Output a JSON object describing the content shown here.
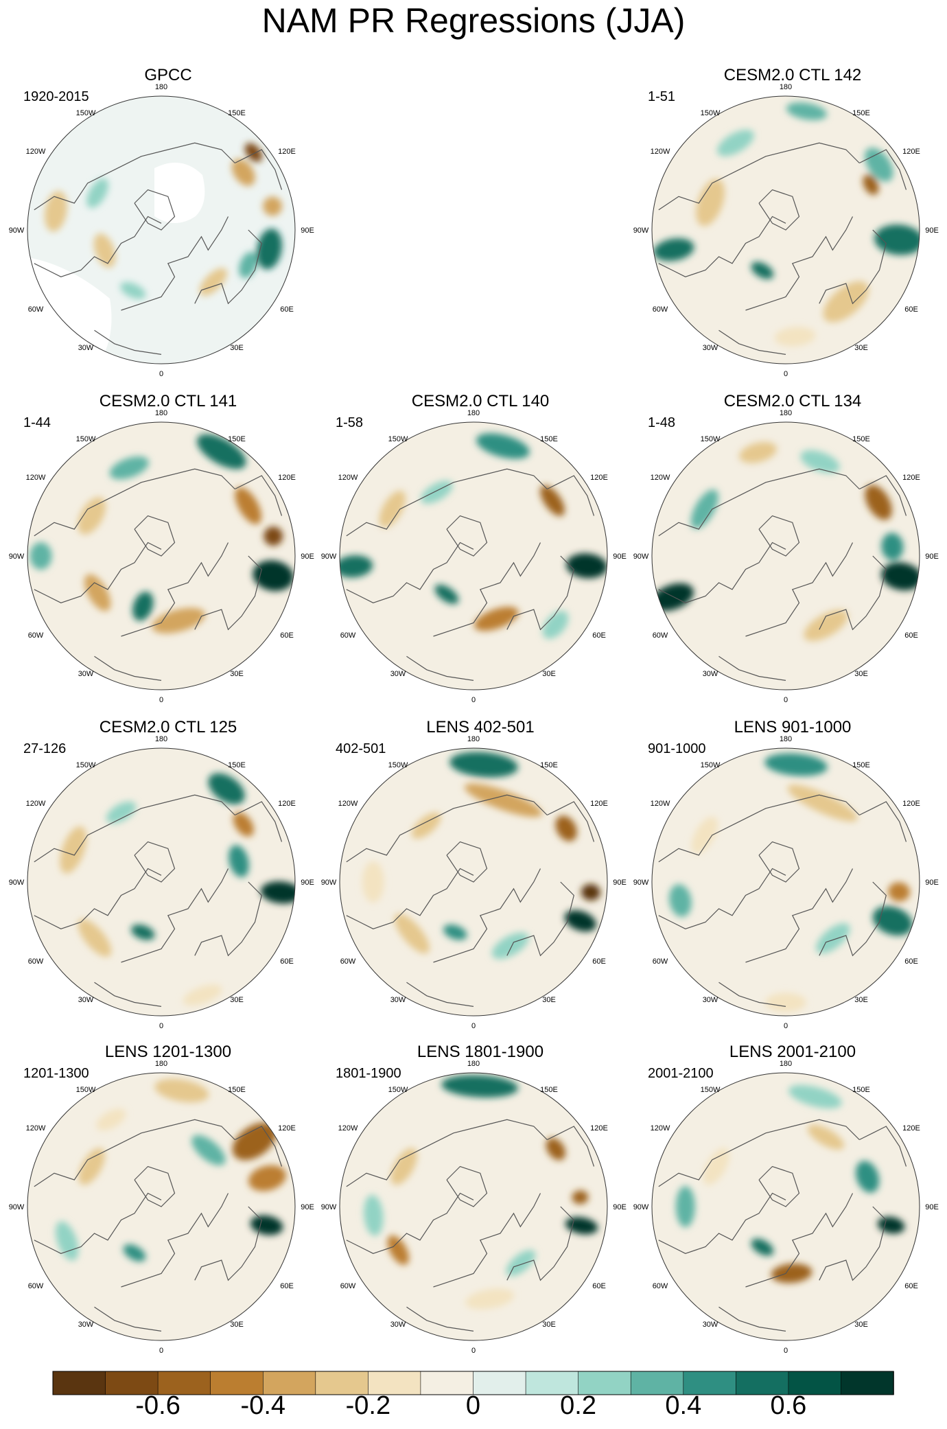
{
  "title": "NAM PR Regressions (JJA)",
  "colors": {
    "coast": "#555555",
    "palette": [
      "#5a3510",
      "#7d4a14",
      "#9c621e",
      "#bb7e30",
      "#d3a55e",
      "#e5c88e",
      "#f3e3c1",
      "#f4efe3",
      "#e2efeb",
      "#bfe6dd",
      "#92d3c4",
      "#5fb3a4",
      "#2f8f82",
      "#146f61",
      "#035445",
      "#01362b"
    ]
  },
  "lon_labels": [
    "180",
    "150E",
    "120E",
    "90E",
    "60E",
    "30E",
    "0",
    "30W",
    "60W",
    "90W",
    "120W",
    "150W"
  ],
  "panels": [
    {
      "title": "GPCC",
      "period": "1920-2015",
      "mask": true,
      "blobs": [
        {
          "a": 50,
          "r": 0.9,
          "rx": 16,
          "ry": 10,
          "v": -0.7
        },
        {
          "a": 55,
          "r": 0.75,
          "rx": 22,
          "ry": 14,
          "v": -0.4
        },
        {
          "a": 78,
          "r": 0.85,
          "rx": 14,
          "ry": 14,
          "v": -0.35
        },
        {
          "a": 100,
          "r": 0.82,
          "rx": 30,
          "ry": 18,
          "v": 0.55
        },
        {
          "a": 112,
          "r": 0.7,
          "rx": 20,
          "ry": 12,
          "v": 0.3
        },
        {
          "a": 135,
          "r": 0.55,
          "rx": 26,
          "ry": 12,
          "v": -0.25
        },
        {
          "a": 205,
          "r": 0.5,
          "rx": 20,
          "ry": 10,
          "v": 0.2
        },
        {
          "a": 250,
          "r": 0.45,
          "rx": 26,
          "ry": 14,
          "v": -0.3
        },
        {
          "a": 280,
          "r": 0.8,
          "rx": 30,
          "ry": 16,
          "v": -0.25
        },
        {
          "a": 300,
          "r": 0.55,
          "rx": 24,
          "ry": 12,
          "v": 0.2
        }
      ]
    },
    {
      "title": "",
      "period": "",
      "empty": true,
      "blobs": []
    },
    {
      "title": "CESM2.0 CTL 142",
      "period": "1-51",
      "blobs": [
        {
          "a": 55,
          "r": 0.85,
          "rx": 28,
          "ry": 16,
          "v": 0.35
        },
        {
          "a": 62,
          "r": 0.72,
          "rx": 16,
          "ry": 10,
          "v": -0.55
        },
        {
          "a": 95,
          "r": 0.85,
          "rx": 22,
          "ry": 36,
          "v": 0.6
        },
        {
          "a": 140,
          "r": 0.7,
          "rx": 40,
          "ry": 20,
          "v": -0.25
        },
        {
          "a": 210,
          "r": 0.35,
          "rx": 18,
          "ry": 10,
          "v": 0.5
        },
        {
          "a": 260,
          "r": 0.85,
          "rx": 16,
          "ry": 30,
          "v": 0.55
        },
        {
          "a": 290,
          "r": 0.6,
          "rx": 36,
          "ry": 18,
          "v": -0.25
        },
        {
          "a": 330,
          "r": 0.75,
          "rx": 30,
          "ry": 14,
          "v": 0.25
        },
        {
          "a": 10,
          "r": 0.9,
          "rx": 30,
          "ry": 12,
          "v": 0.3
        },
        {
          "a": 175,
          "r": 0.8,
          "rx": 30,
          "ry": 14,
          "v": -0.2
        }
      ]
    },
    {
      "title": "CESM2.0 CTL 141",
      "period": "1-44",
      "blobs": [
        {
          "a": 30,
          "r": 0.9,
          "rx": 40,
          "ry": 18,
          "v": 0.5
        },
        {
          "a": 60,
          "r": 0.75,
          "rx": 30,
          "ry": 14,
          "v": -0.5
        },
        {
          "a": 80,
          "r": 0.85,
          "rx": 14,
          "ry": 14,
          "v": -0.65
        },
        {
          "a": 100,
          "r": 0.85,
          "rx": 22,
          "ry": 30,
          "v": 0.7
        },
        {
          "a": 165,
          "r": 0.5,
          "rx": 40,
          "ry": 16,
          "v": -0.4
        },
        {
          "a": 200,
          "r": 0.4,
          "rx": 14,
          "ry": 22,
          "v": 0.5
        },
        {
          "a": 240,
          "r": 0.55,
          "rx": 30,
          "ry": 14,
          "v": -0.35
        },
        {
          "a": 300,
          "r": 0.6,
          "rx": 30,
          "ry": 16,
          "v": -0.3
        },
        {
          "a": 340,
          "r": 0.7,
          "rx": 30,
          "ry": 14,
          "v": 0.3
        },
        {
          "a": 270,
          "r": 0.9,
          "rx": 20,
          "ry": 16,
          "v": 0.3
        }
      ]
    },
    {
      "title": "CESM2.0 CTL 140",
      "period": "1-58",
      "blobs": [
        {
          "a": 15,
          "r": 0.85,
          "rx": 40,
          "ry": 16,
          "v": 0.45
        },
        {
          "a": 55,
          "r": 0.72,
          "rx": 26,
          "ry": 12,
          "v": -0.55
        },
        {
          "a": 95,
          "r": 0.85,
          "rx": 18,
          "ry": 30,
          "v": 0.75
        },
        {
          "a": 160,
          "r": 0.5,
          "rx": 34,
          "ry": 14,
          "v": -0.5
        },
        {
          "a": 215,
          "r": 0.35,
          "rx": 20,
          "ry": 10,
          "v": 0.5
        },
        {
          "a": 265,
          "r": 0.9,
          "rx": 16,
          "ry": 28,
          "v": 0.55
        },
        {
          "a": 300,
          "r": 0.7,
          "rx": 30,
          "ry": 14,
          "v": -0.25
        },
        {
          "a": 330,
          "r": 0.55,
          "rx": 26,
          "ry": 12,
          "v": 0.25
        },
        {
          "a": 130,
          "r": 0.8,
          "rx": 24,
          "ry": 14,
          "v": 0.25
        }
      ]
    },
    {
      "title": "CESM2.0 CTL 134",
      "period": "1-48",
      "blobs": [
        {
          "a": 60,
          "r": 0.8,
          "rx": 28,
          "ry": 16,
          "v": -0.6
        },
        {
          "a": 85,
          "r": 0.8,
          "rx": 20,
          "ry": 16,
          "v": 0.45
        },
        {
          "a": 100,
          "r": 0.88,
          "rx": 20,
          "ry": 30,
          "v": 0.7
        },
        {
          "a": 250,
          "r": 0.9,
          "rx": 18,
          "ry": 32,
          "v": 0.7
        },
        {
          "a": 300,
          "r": 0.7,
          "rx": 32,
          "ry": 14,
          "v": 0.35
        },
        {
          "a": 150,
          "r": 0.6,
          "rx": 36,
          "ry": 16,
          "v": -0.25
        },
        {
          "a": 345,
          "r": 0.8,
          "rx": 28,
          "ry": 14,
          "v": -0.25
        },
        {
          "a": 20,
          "r": 0.75,
          "rx": 30,
          "ry": 14,
          "v": 0.25
        }
      ]
    },
    {
      "title": "CESM2.0 CTL 125",
      "period": "27-126",
      "blobs": [
        {
          "a": 35,
          "r": 0.85,
          "rx": 30,
          "ry": 18,
          "v": 0.5
        },
        {
          "a": 55,
          "r": 0.75,
          "rx": 20,
          "ry": 12,
          "v": -0.5
        },
        {
          "a": 95,
          "r": 0.9,
          "rx": 16,
          "ry": 30,
          "v": 0.8
        },
        {
          "a": 75,
          "r": 0.6,
          "rx": 24,
          "ry": 14,
          "v": 0.45
        },
        {
          "a": 200,
          "r": 0.4,
          "rx": 18,
          "ry": 10,
          "v": 0.5
        },
        {
          "a": 230,
          "r": 0.65,
          "rx": 34,
          "ry": 14,
          "v": -0.3
        },
        {
          "a": 290,
          "r": 0.7,
          "rx": 36,
          "ry": 16,
          "v": -0.25
        },
        {
          "a": 330,
          "r": 0.6,
          "rx": 24,
          "ry": 12,
          "v": 0.2
        },
        {
          "a": 160,
          "r": 0.9,
          "rx": 30,
          "ry": 12,
          "v": -0.2
        }
      ]
    },
    {
      "title": "LENS 402-501",
      "period": "402-501",
      "blobs": [
        {
          "a": 5,
          "r": 0.88,
          "rx": 50,
          "ry": 18,
          "v": 0.55
        },
        {
          "a": 20,
          "r": 0.65,
          "rx": 60,
          "ry": 14,
          "v": -0.4
        },
        {
          "a": 60,
          "r": 0.8,
          "rx": 20,
          "ry": 14,
          "v": -0.55
        },
        {
          "a": 95,
          "r": 0.88,
          "rx": 12,
          "ry": 14,
          "v": -0.75
        },
        {
          "a": 110,
          "r": 0.85,
          "rx": 14,
          "ry": 24,
          "v": 0.7
        },
        {
          "a": 230,
          "r": 0.6,
          "rx": 36,
          "ry": 14,
          "v": -0.3
        },
        {
          "a": 270,
          "r": 0.75,
          "rx": 30,
          "ry": 16,
          "v": -0.2
        },
        {
          "a": 320,
          "r": 0.55,
          "rx": 26,
          "ry": 12,
          "v": -0.25
        },
        {
          "a": 200,
          "r": 0.4,
          "rx": 18,
          "ry": 10,
          "v": 0.45
        },
        {
          "a": 150,
          "r": 0.55,
          "rx": 30,
          "ry": 14,
          "v": 0.2
        }
      ]
    },
    {
      "title": "LENS 901-1000",
      "period": "901-1000",
      "blobs": [
        {
          "a": 5,
          "r": 0.88,
          "rx": 46,
          "ry": 16,
          "v": 0.45
        },
        {
          "a": 25,
          "r": 0.65,
          "rx": 56,
          "ry": 14,
          "v": -0.3
        },
        {
          "a": 95,
          "r": 0.85,
          "rx": 14,
          "ry": 16,
          "v": -0.45
        },
        {
          "a": 110,
          "r": 0.85,
          "rx": 20,
          "ry": 30,
          "v": 0.5
        },
        {
          "a": 260,
          "r": 0.8,
          "rx": 24,
          "ry": 16,
          "v": 0.35
        },
        {
          "a": 300,
          "r": 0.7,
          "rx": 30,
          "ry": 14,
          "v": -0.2
        },
        {
          "a": 180,
          "r": 0.9,
          "rx": 30,
          "ry": 14,
          "v": -0.15
        },
        {
          "a": 140,
          "r": 0.55,
          "rx": 30,
          "ry": 14,
          "v": 0.2
        }
      ]
    },
    {
      "title": "LENS 1201-1300",
      "period": "1201-1300",
      "blobs": [
        {
          "a": 55,
          "r": 0.85,
          "rx": 22,
          "ry": 36,
          "v": -0.6
        },
        {
          "a": 75,
          "r": 0.82,
          "rx": 18,
          "ry": 28,
          "v": -0.5
        },
        {
          "a": 100,
          "r": 0.8,
          "rx": 14,
          "ry": 24,
          "v": 0.7
        },
        {
          "a": 10,
          "r": 0.88,
          "rx": 40,
          "ry": 16,
          "v": -0.25
        },
        {
          "a": 40,
          "r": 0.55,
          "rx": 30,
          "ry": 14,
          "v": 0.3
        },
        {
          "a": 210,
          "r": 0.4,
          "rx": 18,
          "ry": 10,
          "v": 0.45
        },
        {
          "a": 300,
          "r": 0.6,
          "rx": 30,
          "ry": 14,
          "v": -0.3
        },
        {
          "a": 250,
          "r": 0.75,
          "rx": 30,
          "ry": 14,
          "v": 0.25
        },
        {
          "a": 330,
          "r": 0.75,
          "rx": 24,
          "ry": 12,
          "v": -0.2
        }
      ]
    },
    {
      "title": "LENS 1801-1900",
      "period": "1801-1900",
      "blobs": [
        {
          "a": 3,
          "r": 0.9,
          "rx": 56,
          "ry": 16,
          "v": 0.6
        },
        {
          "a": 55,
          "r": 0.75,
          "rx": 18,
          "ry": 12,
          "v": -0.55
        },
        {
          "a": 100,
          "r": 0.82,
          "rx": 12,
          "ry": 24,
          "v": 0.75
        },
        {
          "a": 85,
          "r": 0.8,
          "rx": 10,
          "ry": 12,
          "v": -0.6
        },
        {
          "a": 240,
          "r": 0.65,
          "rx": 24,
          "ry": 12,
          "v": -0.5
        },
        {
          "a": 265,
          "r": 0.75,
          "rx": 30,
          "ry": 14,
          "v": 0.25
        },
        {
          "a": 300,
          "r": 0.6,
          "rx": 30,
          "ry": 14,
          "v": -0.25
        },
        {
          "a": 170,
          "r": 0.7,
          "rx": 36,
          "ry": 14,
          "v": -0.2
        },
        {
          "a": 140,
          "r": 0.55,
          "rx": 26,
          "ry": 12,
          "v": 0.25
        }
      ]
    },
    {
      "title": "LENS 2001-2100",
      "period": "2001-2100",
      "blobs": [
        {
          "a": 15,
          "r": 0.85,
          "rx": 40,
          "ry": 14,
          "v": 0.25
        },
        {
          "a": 70,
          "r": 0.65,
          "rx": 24,
          "ry": 16,
          "v": 0.4
        },
        {
          "a": 100,
          "r": 0.8,
          "rx": 12,
          "ry": 20,
          "v": 0.8
        },
        {
          "a": 175,
          "r": 0.5,
          "rx": 30,
          "ry": 14,
          "v": -0.6
        },
        {
          "a": 210,
          "r": 0.35,
          "rx": 18,
          "ry": 10,
          "v": 0.5
        },
        {
          "a": 270,
          "r": 0.75,
          "rx": 30,
          "ry": 14,
          "v": 0.3
        },
        {
          "a": 300,
          "r": 0.6,
          "rx": 30,
          "ry": 14,
          "v": -0.2
        },
        {
          "a": 30,
          "r": 0.6,
          "rx": 30,
          "ry": 12,
          "v": -0.25
        }
      ]
    }
  ],
  "colorbar": {
    "ticks": [
      {
        "label": "-0.6",
        "value": -0.6
      },
      {
        "label": "-0.4",
        "value": -0.4
      },
      {
        "label": "-0.2",
        "value": -0.2
      },
      {
        "label": "0",
        "value": 0
      },
      {
        "label": "0.2",
        "value": 0.2
      },
      {
        "label": "0.4",
        "value": 0.4
      },
      {
        "label": "0.6",
        "value": 0.6
      }
    ],
    "min": -0.8,
    "max": 0.8
  }
}
